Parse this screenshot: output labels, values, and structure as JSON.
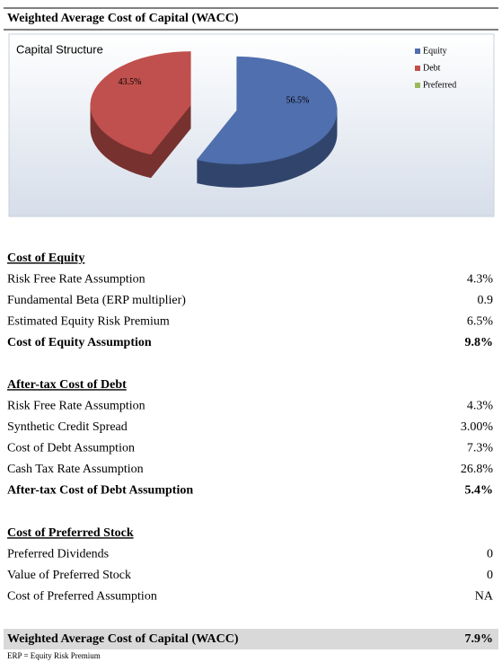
{
  "header": {
    "title": "Weighted Average Cost of Capital (WACC)"
  },
  "chart_data": {
    "type": "pie",
    "title": "Capital Structure",
    "categories": [
      "Equity",
      "Debt",
      "Preferred"
    ],
    "values": [
      56.5,
      43.5,
      0
    ],
    "value_labels": [
      "56.5%",
      "43.5%",
      null
    ],
    "colors": [
      "#4f6fae",
      "#c0504d",
      "#9bbb59"
    ]
  },
  "sections": [
    {
      "title": "Cost of Equity",
      "rows": [
        [
          "Risk Free Rate Assumption",
          "4.3%"
        ],
        [
          "Fundamental Beta (ERP multiplier)",
          "0.9"
        ],
        [
          "Estimated Equity Risk Premium",
          "6.5%"
        ]
      ],
      "total": [
        "Cost of Equity Assumption",
        "9.8%"
      ]
    },
    {
      "title": "After-tax Cost of Debt",
      "rows": [
        [
          "Risk Free Rate Assumption",
          "4.3%"
        ],
        [
          "Synthetic Credit Spread",
          "3.00%"
        ],
        [
          "Cost of Debt Assumption",
          "7.3%"
        ],
        [
          "Cash Tax Rate Assumption",
          "26.8%"
        ]
      ],
      "total": [
        "After-tax Cost of Debt Assumption",
        "5.4%"
      ]
    },
    {
      "title": "Cost of Preferred Stock",
      "rows": [
        [
          "Preferred Dividends",
          "0"
        ],
        [
          "Value of Preferred Stock",
          "0"
        ],
        [
          "Cost of Preferred Assumption",
          "NA"
        ]
      ]
    }
  ],
  "summary": [
    "Weighted Average Cost of Capital (WACC)",
    "7.9%"
  ],
  "footnote": "ERP = Equity Risk Premium"
}
